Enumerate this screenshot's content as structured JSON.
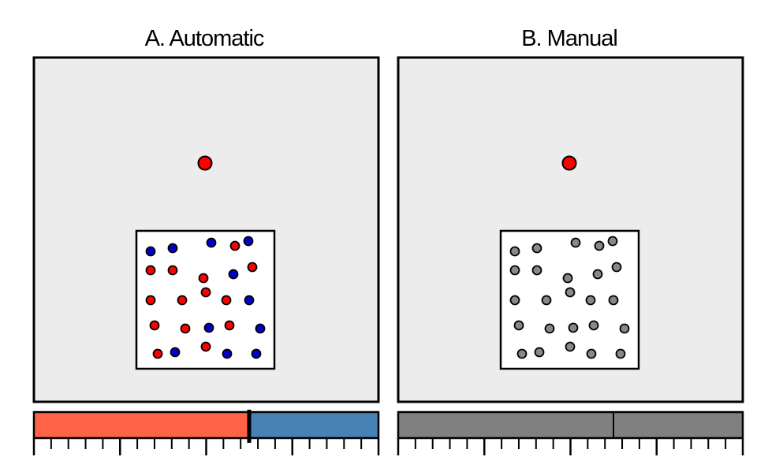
{
  "panels": [
    {
      "id": "automatic",
      "title": "A. Automatic",
      "fixation_color": "#ff0000",
      "dot_colors": [
        "blue",
        "blue",
        "blue",
        "red",
        "blue",
        "red",
        "red",
        "red",
        "blue",
        "red",
        "red",
        "red",
        "red",
        "red",
        "blue",
        "red",
        "red",
        "blue",
        "red",
        "blue",
        "red",
        "blue",
        "red",
        "blue",
        "blue"
      ],
      "bar": {
        "left_color": "#ff6347",
        "right_color": "#4682b4",
        "split_fraction": 0.625,
        "ticks": 20
      }
    },
    {
      "id": "manual",
      "title": "B. Manual",
      "fixation_color": "#ff0000",
      "dot_colors": [
        "gray",
        "gray",
        "gray",
        "gray",
        "gray",
        "gray",
        "gray",
        "gray",
        "gray",
        "gray",
        "gray",
        "gray",
        "gray",
        "gray",
        "gray",
        "gray",
        "gray",
        "gray",
        "gray",
        "gray",
        "gray",
        "gray",
        "gray",
        "gray",
        "gray"
      ],
      "bar": {
        "left_color": "#808080",
        "right_color": "#808080",
        "split_fraction": 0.625,
        "ticks": 20
      }
    }
  ],
  "palette": {
    "red": "#ff0000",
    "blue": "#0000cd",
    "gray": "#888888",
    "panel_bg": "#ececec",
    "stroke": "#000000"
  }
}
